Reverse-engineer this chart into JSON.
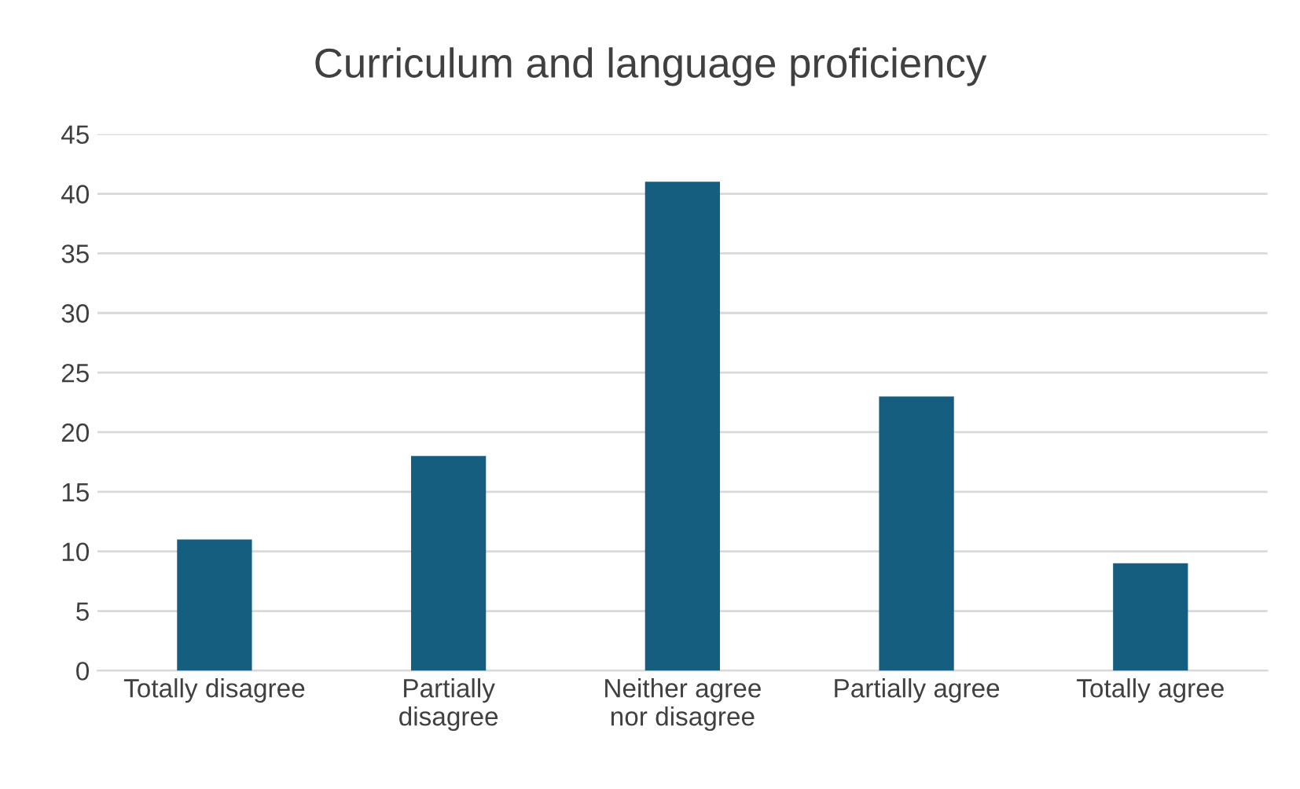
{
  "chart_data": {
    "type": "bar",
    "title": "Curriculum and language proficiency",
    "categories": [
      "Totally disagree",
      "Partially disagree",
      "Neither agree nor disagree",
      "Partially agree",
      "Totally agree"
    ],
    "values": [
      11,
      18,
      41,
      23,
      9
    ],
    "color": "#155e7f",
    "ylim": [
      0,
      45
    ],
    "yticks": [
      0,
      5,
      10,
      15,
      20,
      25,
      30,
      35,
      40,
      45
    ],
    "grid": "y",
    "legend": false
  }
}
